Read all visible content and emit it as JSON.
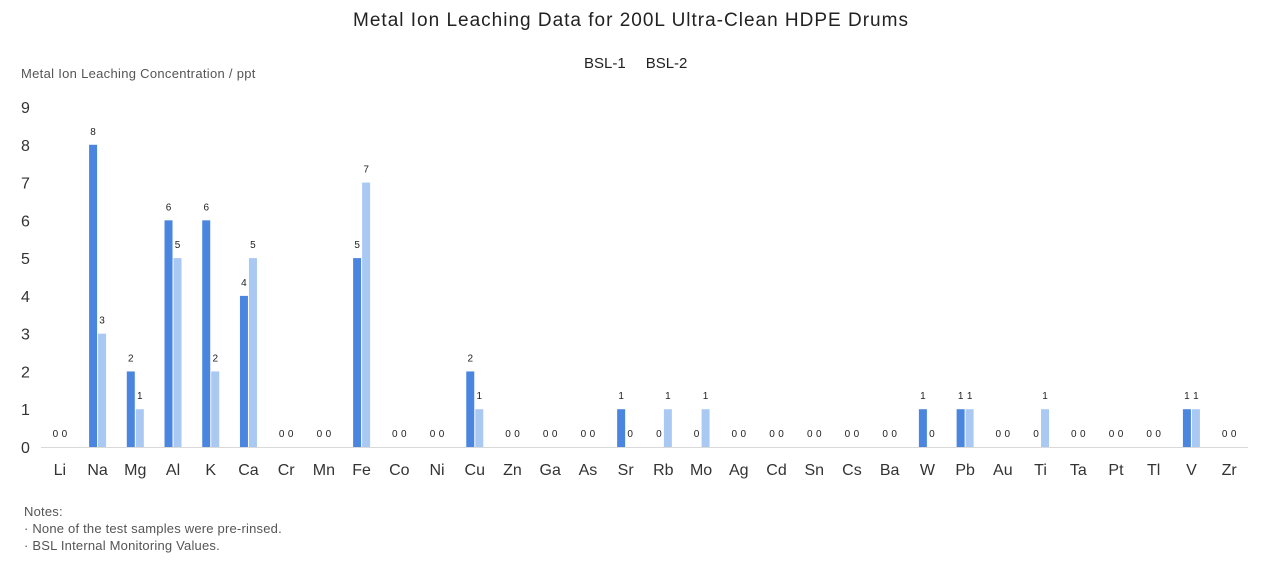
{
  "title": "Metal Ion Leaching Data for 200L Ultra-Clean HDPE Drums",
  "ylabel": "Metal Ion Leaching Concentration / ppt",
  "legend": [
    "BSL-1",
    "BSL-2"
  ],
  "notes": {
    "heading": "Notes:",
    "items": [
      "· None of the test samples were pre-rinsed.",
      "· BSL Internal Monitoring Values."
    ]
  },
  "colors": {
    "bsl1": "#4a86e0",
    "bsl2": "#a9c8f2",
    "axis": "#d9d9d9"
  },
  "chart_data": {
    "type": "bar",
    "title": "Metal Ion Leaching Data for 200L Ultra-Clean HDPE Drums",
    "ylabel": "Metal Ion Leaching Concentration / ppt",
    "xlabel": "",
    "ylim": [
      0,
      9
    ],
    "yticks": [
      0,
      1,
      2,
      3,
      4,
      5,
      6,
      7,
      8,
      9
    ],
    "grid": false,
    "legend_position": "top-center",
    "categories": [
      "Li",
      "Na",
      "Mg",
      "Al",
      "K",
      "Ca",
      "Cr",
      "Mn",
      "Fe",
      "Co",
      "Ni",
      "Cu",
      "Zn",
      "Ga",
      "As",
      "Sr",
      "Rb",
      "Mo",
      "Ag",
      "Cd",
      "Sn",
      "Cs",
      "Ba",
      "W",
      "Pb",
      "Au",
      "Ti",
      "Ta",
      "Pt",
      "Tl",
      "V",
      "Zr"
    ],
    "series": [
      {
        "name": "BSL-1",
        "values": [
          0,
          8,
          2,
          6,
          6,
          4,
          0,
          0,
          5,
          0,
          0,
          2,
          0,
          0,
          0,
          1,
          0,
          0,
          0,
          0,
          0,
          0,
          0,
          1,
          1,
          0,
          0,
          0,
          0,
          0,
          1,
          0
        ]
      },
      {
        "name": "BSL-2",
        "values": [
          0,
          3,
          1,
          5,
          2,
          5,
          0,
          0,
          7,
          0,
          0,
          1,
          0,
          0,
          0,
          0,
          1,
          1,
          0,
          0,
          0,
          0,
          0,
          0,
          1,
          0,
          1,
          0,
          0,
          0,
          1,
          0
        ]
      }
    ]
  }
}
